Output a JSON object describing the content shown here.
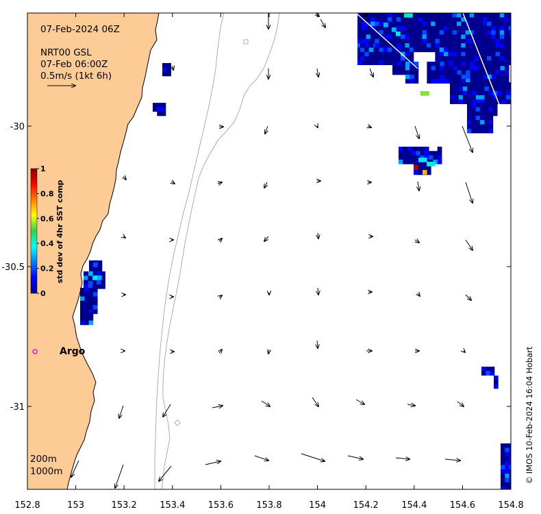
{
  "map": {
    "title_date": "07-Feb-2024 06Z",
    "current_source": "NRT00 GSL",
    "current_time": "07-Feb 06:00Z",
    "scale_label": "0.5m/s (1kt 6h)",
    "argo_label": "Argo",
    "isobath_labels": [
      "200m",
      "1000m"
    ],
    "credit": "© IMOS 10-Feb-2024 16:04 Hobart",
    "land_color": "#fccb96",
    "argo_color": "#ff00ff",
    "x_ticks": [
      "152.8",
      "153",
      "153.2",
      "153.4",
      "153.6",
      "153.8",
      "154",
      "154.2",
      "154.4",
      "154.6",
      "154.8"
    ],
    "y_ticks": [
      "-30",
      "-30.5",
      "-31"
    ],
    "lon_range": [
      152.8,
      154.8
    ],
    "lat_range": [
      -31.3,
      -29.6
    ]
  },
  "colorbar": {
    "label": "std dev of 4hr SST comp",
    "ticks": [
      "1",
      "0.8",
      "0.6",
      "0.4",
      "0.2",
      "0"
    ],
    "range": [
      0,
      1
    ],
    "colormap": "jet"
  }
}
